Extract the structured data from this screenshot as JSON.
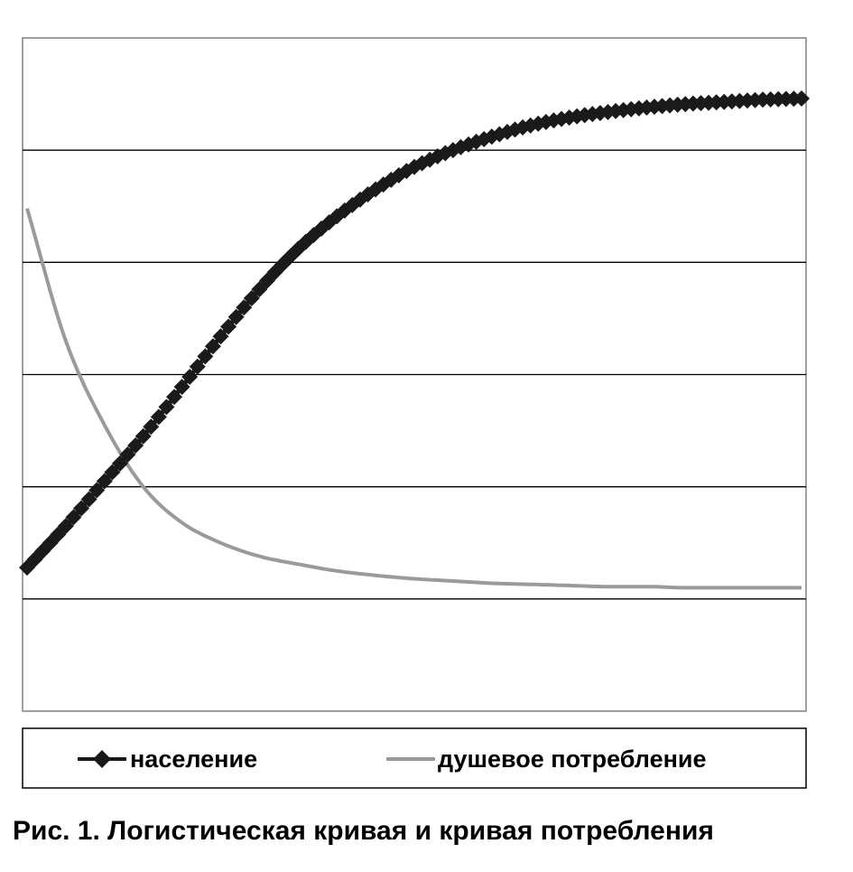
{
  "caption": "Рис. 1. Логистическая кривая и кривая потребления",
  "chart_data": {
    "type": "line",
    "title": "",
    "xlabel": "",
    "ylabel": "",
    "xlim": [
      0,
      100
    ],
    "ylim": [
      -1,
      5
    ],
    "grid": true,
    "gridlines": [
      0,
      1,
      2,
      3,
      4
    ],
    "legend": "bottom",
    "x": [
      0,
      5,
      10,
      15,
      20,
      25,
      30,
      35,
      40,
      45,
      50,
      55,
      60,
      65,
      70,
      75,
      80,
      85,
      90,
      95,
      100
    ],
    "series": [
      {
        "name": "население",
        "color": "#1a1a1a",
        "marker": "diamond",
        "values": [
          0.28,
          0.65,
          1.05,
          1.45,
          1.89,
          2.34,
          2.76,
          3.12,
          3.41,
          3.65,
          3.85,
          4.0,
          4.12,
          4.22,
          4.29,
          4.34,
          4.38,
          4.41,
          4.43,
          4.45,
          4.46
        ]
      },
      {
        "name": "душевое потребление",
        "color": "#9a9a9a",
        "marker": "none",
        "values": [
          3.48,
          2.3,
          1.55,
          1.0,
          0.68,
          0.5,
          0.38,
          0.31,
          0.25,
          0.21,
          0.18,
          0.16,
          0.14,
          0.13,
          0.12,
          0.11,
          0.11,
          0.1,
          0.1,
          0.1,
          0.1
        ]
      }
    ]
  }
}
